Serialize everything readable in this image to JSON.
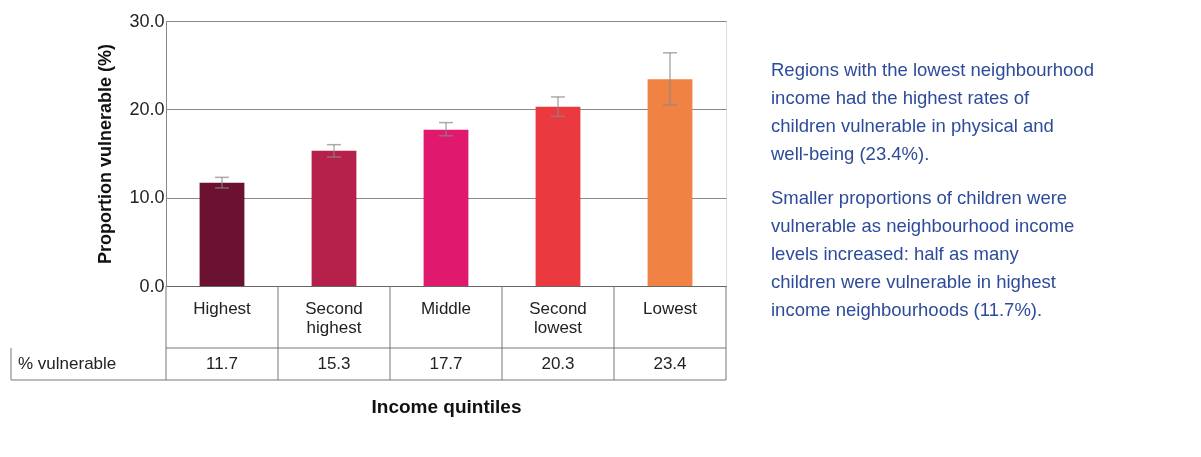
{
  "chart_data": {
    "type": "bar",
    "xlabel": "Income quintiles",
    "ylabel": "Proportion vulnerable (%)",
    "categories": [
      "Highest",
      "Second highest",
      "Middle",
      "Second lowest",
      "Lowest"
    ],
    "values": [
      11.7,
      15.3,
      17.7,
      20.3,
      23.4
    ],
    "colors": [
      "#6b1232",
      "#b5214b",
      "#e0196e",
      "#ea3a40",
      "#f08344"
    ],
    "errors": [
      [
        11.1,
        12.3
      ],
      [
        14.6,
        16.0
      ],
      [
        17.0,
        18.5
      ],
      [
        19.2,
        21.4
      ],
      [
        20.5,
        26.4
      ]
    ],
    "ylim": [
      0,
      30
    ],
    "yticks": [
      {
        "value": 0,
        "label": "0.0"
      },
      {
        "value": 10,
        "label": "10.0"
      },
      {
        "value": 20,
        "label": "20.0"
      },
      {
        "value": 30,
        "label": "30.0"
      }
    ],
    "grid": "y",
    "data_labels": true,
    "annotations": [
      "% vulnerable",
      "Regions with the lowest neighbourhood income had the highest rates of children vulnerable in physical and well-being (23.4%).",
      "Smaller proportions of children were vulnerable as neighbourhood income levels increased: half as many children were vulnerable in highest income neighbourhoods (11.7%)."
    ]
  }
}
